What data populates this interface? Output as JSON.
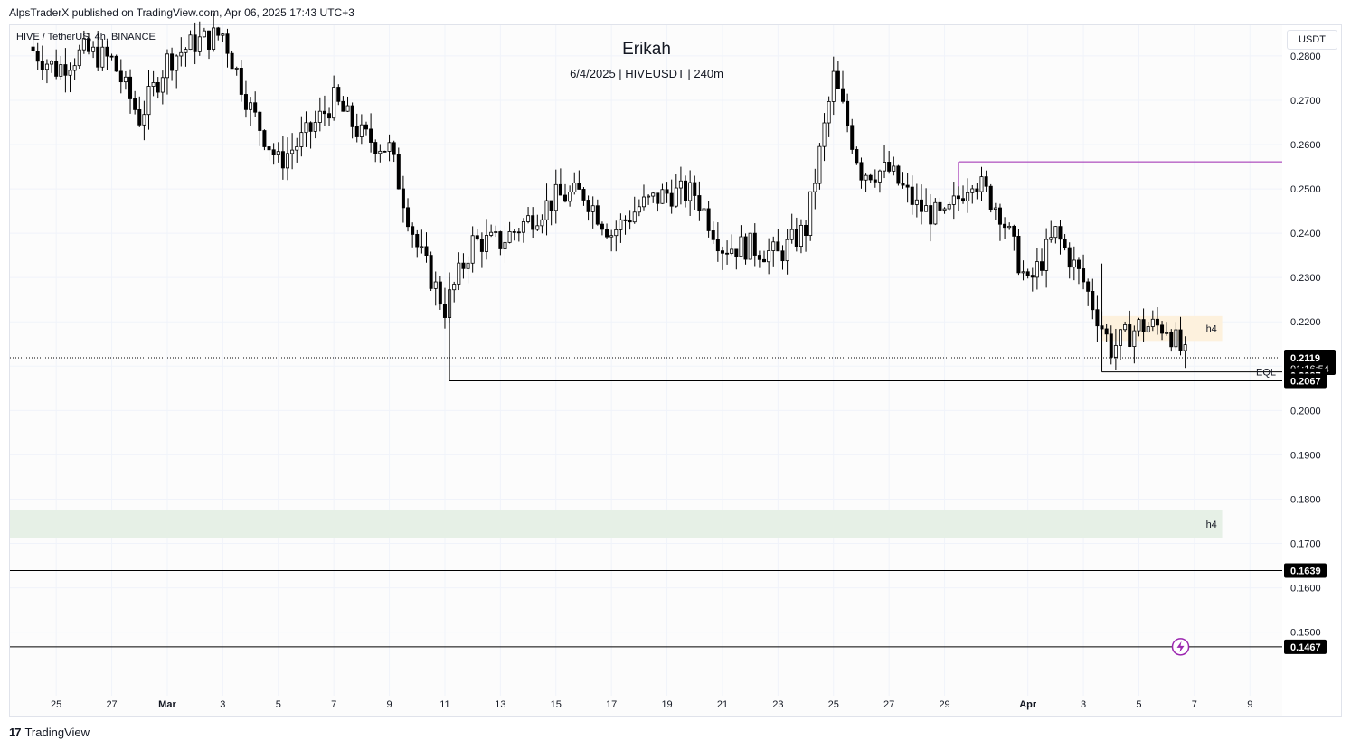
{
  "header": {
    "published_by": "AlpsTraderX published on TradingView.com, Apr 06, 2025 17:43 UTC+3",
    "symbol_line": "HIVE / TetherUS, 4h, BINANCE"
  },
  "footer": {
    "brand": "TradingView",
    "logo_icon": "tradingview-logo-icon"
  },
  "colors": {
    "candle": "#000000",
    "resistance_line": "#9c27b0",
    "supply_zone": "#fdf1dd",
    "demand_zone": "#e6f0e6",
    "badge": "#000000"
  },
  "chart_data": {
    "type": "candlestick",
    "title": "Erikah",
    "subtitle": "6/4/2025 | HIVEUSDT | 240m",
    "currency": "USDT",
    "ylim": [
      0.143,
      0.2865
    ],
    "y_ticks": [
      "0.2800",
      "0.2700",
      "0.2600",
      "0.2500",
      "0.2400",
      "0.2300",
      "0.2200",
      "0.2100",
      "0.2000",
      "0.1900",
      "0.1800",
      "0.1700",
      "0.1600",
      "0.1500"
    ],
    "x_ticks": [
      "25",
      "27",
      "Mar",
      "3",
      "5",
      "7",
      "9",
      "11",
      "13",
      "15",
      "17",
      "19",
      "21",
      "23",
      "25",
      "27",
      "29",
      "Apr",
      "3",
      "5",
      "7",
      "9"
    ],
    "x_tick_dates": [
      "2025-02-25",
      "2025-02-27",
      "2025-03-01",
      "2025-03-03",
      "2025-03-05",
      "2025-03-07",
      "2025-03-09",
      "2025-03-11",
      "2025-03-13",
      "2025-03-15",
      "2025-03-17",
      "2025-03-19",
      "2025-03-21",
      "2025-03-23",
      "2025-03-25",
      "2025-03-27",
      "2025-03-29",
      "2025-04-01",
      "2025-04-03",
      "2025-04-05",
      "2025-04-07",
      "2025-04-09"
    ],
    "close_path": [
      [
        "2025-02-24",
        0.282
      ],
      [
        "2025-02-25",
        0.277
      ],
      [
        "2025-02-26",
        0.281
      ],
      [
        "2025-02-27",
        0.279
      ],
      [
        "2025-02-28",
        0.266
      ],
      [
        "2025-03-01",
        0.279
      ],
      [
        "2025-03-02",
        0.283
      ],
      [
        "2025-03-03",
        0.285
      ],
      [
        "2025-03-04",
        0.268
      ],
      [
        "2025-03-05",
        0.256
      ],
      [
        "2025-03-06",
        0.262
      ],
      [
        "2025-03-07",
        0.27
      ],
      [
        "2025-03-08",
        0.262
      ],
      [
        "2025-03-09",
        0.259
      ],
      [
        "2025-03-10",
        0.237
      ],
      [
        "2025-03-11",
        0.223
      ],
      [
        "2025-03-12",
        0.238
      ],
      [
        "2025-03-13",
        0.238
      ],
      [
        "2025-03-14",
        0.243
      ],
      [
        "2025-03-15",
        0.248
      ],
      [
        "2025-03-16",
        0.249
      ],
      [
        "2025-03-17",
        0.24
      ],
      [
        "2025-03-18",
        0.246
      ],
      [
        "2025-03-19",
        0.249
      ],
      [
        "2025-03-20",
        0.249
      ],
      [
        "2025-03-21",
        0.237
      ],
      [
        "2025-03-22",
        0.237
      ],
      [
        "2025-03-23",
        0.235
      ],
      [
        "2025-03-24",
        0.241
      ],
      [
        "2025-03-25",
        0.275
      ],
      [
        "2025-03-26",
        0.254
      ],
      [
        "2025-03-27",
        0.254
      ],
      [
        "2025-03-28",
        0.246
      ],
      [
        "2025-03-29",
        0.243
      ],
      [
        "2025-03-30",
        0.253
      ],
      [
        "2025-03-31",
        0.245
      ],
      [
        "2025-04-01",
        0.228
      ],
      [
        "2025-04-02",
        0.24
      ],
      [
        "2025-04-03",
        0.229
      ],
      [
        "2025-04-04",
        0.214
      ],
      [
        "2025-04-05",
        0.219
      ],
      [
        "2025-04-06",
        0.219
      ],
      [
        "2025-04-06T16:00",
        0.2119
      ]
    ],
    "last_price": "0.2119",
    "countdown": "01:16:54",
    "levels": [
      {
        "price": 0.2087,
        "label": "0.2087",
        "from": "2025-04-03T16:00"
      },
      {
        "price": 0.2067,
        "label": "0.2067",
        "from": "2025-03-11T04:00"
      },
      {
        "price": 0.1639,
        "label": "0.1639",
        "from": "2025-02-23"
      },
      {
        "price": 0.1467,
        "label": "0.1467",
        "from": "2025-02-23"
      }
    ],
    "resistance_line": {
      "price": 0.2561,
      "from": "2025-03-29T12:00"
    },
    "zones": [
      {
        "label": "h4",
        "top": 0.2213,
        "bottom": 0.2157,
        "from": "2025-04-03T16:00",
        "to": "2025-04-08",
        "type": "supply"
      },
      {
        "label": "h4",
        "top": 0.1775,
        "bottom": 0.1713,
        "from": "2025-02-23",
        "to": "2025-04-08",
        "type": "demand"
      }
    ],
    "annotations": [
      {
        "text": "EQL",
        "price": 0.2087
      }
    ],
    "markers": [
      {
        "icon": "lightning-icon",
        "date": "2025-04-06T12:00",
        "price": 0.1467
      }
    ]
  }
}
